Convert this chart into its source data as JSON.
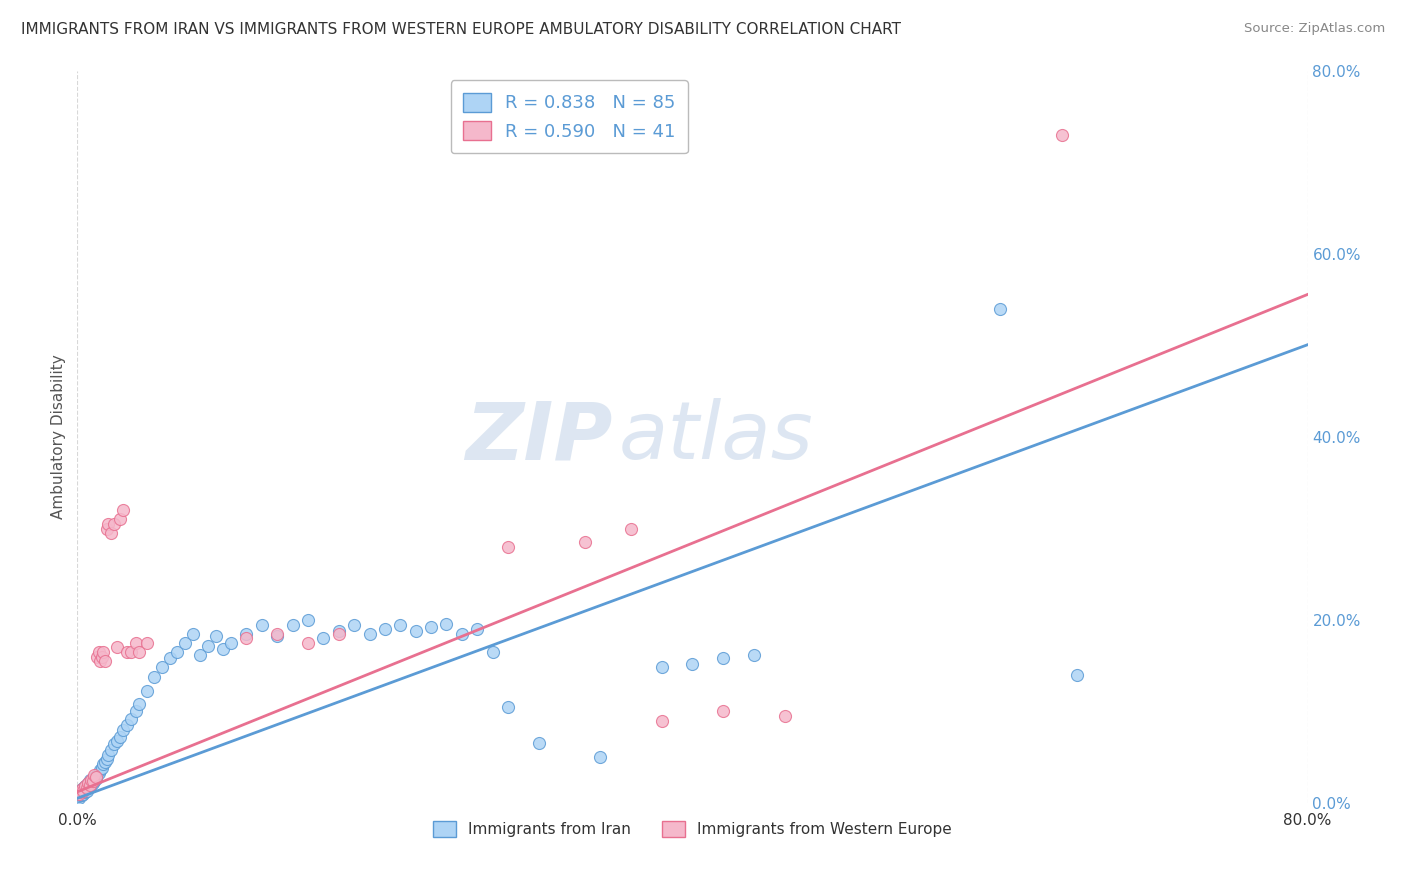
{
  "title": "IMMIGRANTS FROM IRAN VS IMMIGRANTS FROM WESTERN EUROPE AMBULATORY DISABILITY CORRELATION CHART",
  "source": "Source: ZipAtlas.com",
  "ylabel_label": "Ambulatory Disability",
  "xmin": 0.0,
  "xmax": 0.8,
  "ymin": 0.0,
  "ymax": 0.8,
  "y_ticks_right": [
    0.0,
    0.2,
    0.4,
    0.6,
    0.8
  ],
  "y_tick_labels_right": [
    "0.0%",
    "20.0%",
    "40.0%",
    "60.0%",
    "80.0%"
  ],
  "iran_R": 0.838,
  "iran_N": 85,
  "western_R": 0.59,
  "western_N": 41,
  "iran_color": "#aed4f5",
  "western_color": "#f5b8cb",
  "iran_line_color": "#5b9bd5",
  "western_line_color": "#e87090",
  "iran_line_slope": 0.62,
  "iran_line_intercept": 0.005,
  "western_line_slope": 0.68,
  "western_line_intercept": 0.012,
  "iran_scatter_x": [
    0.001,
    0.001,
    0.002,
    0.002,
    0.002,
    0.003,
    0.003,
    0.003,
    0.004,
    0.004,
    0.004,
    0.005,
    0.005,
    0.005,
    0.006,
    0.006,
    0.006,
    0.007,
    0.007,
    0.007,
    0.008,
    0.008,
    0.008,
    0.009,
    0.009,
    0.01,
    0.01,
    0.011,
    0.011,
    0.012,
    0.013,
    0.014,
    0.015,
    0.016,
    0.017,
    0.018,
    0.019,
    0.02,
    0.022,
    0.024,
    0.026,
    0.028,
    0.03,
    0.032,
    0.035,
    0.038,
    0.04,
    0.045,
    0.05,
    0.055,
    0.06,
    0.065,
    0.07,
    0.075,
    0.08,
    0.085,
    0.09,
    0.095,
    0.1,
    0.11,
    0.12,
    0.13,
    0.14,
    0.15,
    0.16,
    0.17,
    0.18,
    0.19,
    0.2,
    0.21,
    0.22,
    0.23,
    0.24,
    0.25,
    0.26,
    0.27,
    0.28,
    0.3,
    0.34,
    0.38,
    0.4,
    0.42,
    0.44,
    0.6,
    0.65
  ],
  "iran_scatter_y": [
    0.005,
    0.007,
    0.008,
    0.01,
    0.012,
    0.009,
    0.012,
    0.015,
    0.01,
    0.013,
    0.016,
    0.012,
    0.015,
    0.018,
    0.013,
    0.017,
    0.02,
    0.016,
    0.019,
    0.022,
    0.018,
    0.022,
    0.025,
    0.02,
    0.024,
    0.022,
    0.026,
    0.024,
    0.028,
    0.026,
    0.03,
    0.033,
    0.036,
    0.038,
    0.042,
    0.045,
    0.048,
    0.052,
    0.058,
    0.064,
    0.068,
    0.072,
    0.08,
    0.085,
    0.092,
    0.1,
    0.108,
    0.122,
    0.138,
    0.148,
    0.158,
    0.165,
    0.175,
    0.185,
    0.162,
    0.172,
    0.182,
    0.168,
    0.175,
    0.185,
    0.195,
    0.182,
    0.195,
    0.2,
    0.18,
    0.188,
    0.195,
    0.185,
    0.19,
    0.195,
    0.188,
    0.192,
    0.196,
    0.185,
    0.19,
    0.165,
    0.105,
    0.065,
    0.05,
    0.148,
    0.152,
    0.158,
    0.162,
    0.54,
    0.14
  ],
  "western_scatter_x": [
    0.001,
    0.002,
    0.003,
    0.004,
    0.005,
    0.006,
    0.007,
    0.008,
    0.009,
    0.01,
    0.011,
    0.012,
    0.013,
    0.014,
    0.015,
    0.016,
    0.017,
    0.018,
    0.019,
    0.02,
    0.022,
    0.024,
    0.026,
    0.028,
    0.03,
    0.032,
    0.035,
    0.038,
    0.04,
    0.045,
    0.11,
    0.13,
    0.15,
    0.17,
    0.28,
    0.33,
    0.36,
    0.38,
    0.42,
    0.46,
    0.64
  ],
  "western_scatter_y": [
    0.01,
    0.012,
    0.015,
    0.013,
    0.018,
    0.016,
    0.022,
    0.02,
    0.025,
    0.024,
    0.03,
    0.028,
    0.16,
    0.165,
    0.155,
    0.16,
    0.165,
    0.155,
    0.3,
    0.305,
    0.295,
    0.305,
    0.17,
    0.31,
    0.32,
    0.165,
    0.165,
    0.175,
    0.165,
    0.175,
    0.18,
    0.185,
    0.175,
    0.185,
    0.28,
    0.285,
    0.3,
    0.09,
    0.1,
    0.095,
    0.73
  ],
  "watermark_zip": "ZIP",
  "watermark_atlas": "atlas",
  "background_color": "#ffffff",
  "grid_color": "#d8d8d8"
}
